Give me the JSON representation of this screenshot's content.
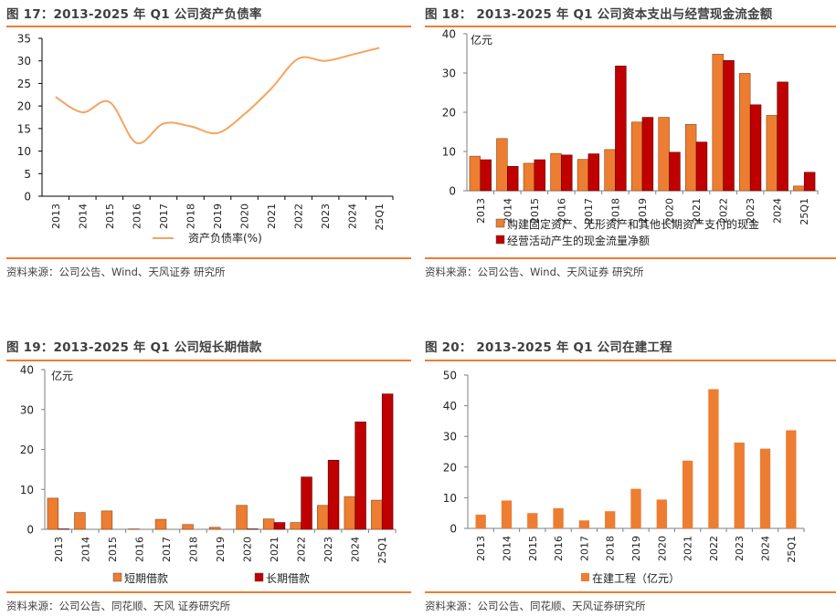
{
  "colors": {
    "orange": "#ED7D31",
    "red": "#C00000",
    "line": "#F4A460",
    "rule": "#ED7D31"
  },
  "panels": [
    {
      "title": "图 17：2013-2025 年 Q1 公司资产负债率",
      "source": "资料来源：公司公告、Wind、天风证券 研究所"
    },
    {
      "title": "图 18： 2013-2025 年 Q1 公司资本支出与经营现金流金额",
      "source": "资料来源：公司公告、Wind、天风证券 研究所"
    },
    {
      "title": "图 19：2013-2025 年 Q1 公司短长期借款",
      "source": "资料来源：公司公告、同花顺、天风 证券研究所"
    },
    {
      "title": "图 20： 2013-2025 年 Q1 公司在建工程",
      "source": "资料来源：公司公告、同花顺、天风证券研究所"
    }
  ],
  "chart_data": [
    {
      "type": "line",
      "title": "图 17：2013-2025 年 Q1 公司资产负债率",
      "categories": [
        "2013",
        "2014",
        "2015",
        "2016",
        "2017",
        "2018",
        "2019",
        "2020",
        "2021",
        "2022",
        "2023",
        "2024",
        "25Q1"
      ],
      "series": [
        {
          "name": "资产负债率(%)",
          "values": [
            22.0,
            18.6,
            20.9,
            11.8,
            16.1,
            15.5,
            14.0,
            18.2,
            23.9,
            30.5,
            30.0,
            31.4,
            32.9
          ]
        }
      ],
      "yticks": [
        0,
        5,
        10,
        15,
        20,
        25,
        30,
        35
      ],
      "ylim": [
        0,
        35
      ],
      "xlabel": "",
      "ylabel": "",
      "unit": "",
      "legend": "bottom",
      "grid": false
    },
    {
      "type": "bar",
      "title": "图 18： 2013-2025 年 Q1 公司资本支出与经营现金流金额",
      "categories": [
        "2013",
        "2014",
        "2015",
        "2016",
        "2017",
        "2018",
        "2019",
        "2020",
        "2021",
        "2022",
        "2023",
        "2024",
        "25Q1"
      ],
      "series": [
        {
          "name": "购建固定资产、无形资产和其他长期资产支付的现金",
          "color": "orange",
          "values": [
            8.8,
            13.3,
            7.0,
            9.5,
            8.0,
            10.5,
            17.5,
            18.7,
            16.9,
            34.8,
            29.9,
            19.2,
            1.2
          ]
        },
        {
          "name": "经营活动产生的现金流量净额",
          "color": "red",
          "values": [
            7.9,
            6.2,
            7.9,
            9.1,
            9.4,
            31.8,
            18.7,
            9.8,
            12.4,
            33.2,
            21.9,
            27.7,
            4.7
          ]
        }
      ],
      "yticks": [
        0,
        10,
        20,
        30,
        40
      ],
      "ylim": [
        0,
        40
      ],
      "unit": "亿元",
      "legend": "bottom",
      "grid": false
    },
    {
      "type": "bar",
      "title": "图 19：2013-2025 年 Q1 公司短长期借款",
      "categories": [
        "2013",
        "2014",
        "2015",
        "2016",
        "2017",
        "2018",
        "2019",
        "2020",
        "2021",
        "2022",
        "2023",
        "2024",
        "25Q1"
      ],
      "series": [
        {
          "name": "短期借款",
          "color": "orange",
          "values": [
            7.8,
            4.2,
            4.6,
            0.1,
            2.5,
            1.2,
            0.5,
            6.0,
            2.6,
            1.7,
            6.0,
            8.2,
            7.3
          ]
        },
        {
          "name": "长期借款",
          "color": "red",
          "values": [
            0.1,
            0,
            0,
            0,
            0,
            0,
            0,
            0.1,
            1.7,
            13.1,
            17.3,
            26.9,
            33.9
          ]
        }
      ],
      "yticks": [
        0,
        10,
        20,
        30,
        40
      ],
      "ylim": [
        0,
        40
      ],
      "unit": "亿元",
      "legend": "bottom",
      "grid": false
    },
    {
      "type": "bar",
      "title": "图 20： 2013-2025 年 Q1 公司在建工程",
      "categories": [
        "2013",
        "2014",
        "2015",
        "2016",
        "2017",
        "2018",
        "2019",
        "2020",
        "2021",
        "2022",
        "2023",
        "2024",
        "25Q1"
      ],
      "series": [
        {
          "name": "在建工程（亿元）",
          "color": "orange",
          "values": [
            4.5,
            9.1,
            5.0,
            6.6,
            2.6,
            5.6,
            12.9,
            9.4,
            22.1,
            45.4,
            28.0,
            26.0,
            32.0
          ]
        }
      ],
      "yticks": [
        0,
        10,
        20,
        30,
        40,
        50
      ],
      "ylim": [
        0,
        50
      ],
      "unit": "",
      "legend": "bottom",
      "grid": false
    }
  ]
}
